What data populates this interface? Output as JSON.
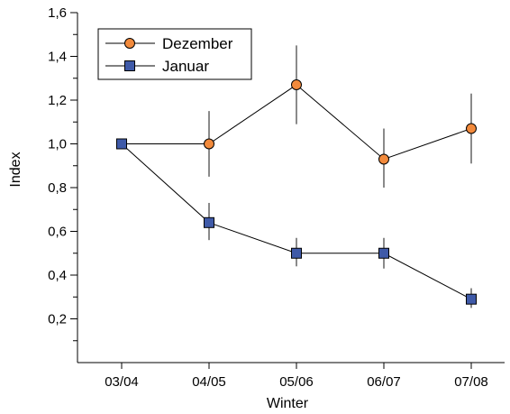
{
  "chart_data": {
    "type": "line",
    "xlabel": "Winter",
    "ylabel": "Index",
    "categories": [
      "03/04",
      "04/05",
      "05/06",
      "06/07",
      "07/08"
    ],
    "ylim": [
      0,
      1.6
    ],
    "yticks": [
      0.2,
      0.4,
      0.6,
      0.8,
      1.0,
      1.2,
      1.4,
      1.6
    ],
    "ytick_labels": [
      "0,2",
      "0,4",
      "0,6",
      "0,8",
      "1,0",
      "1,2",
      "1,4",
      "1,6"
    ],
    "grid": false,
    "legend_position": "top-left",
    "series": [
      {
        "name": "Dezember",
        "marker": "circle",
        "color": "#F28A3C",
        "values": [
          1.0,
          1.0,
          1.27,
          0.93,
          1.07
        ],
        "error_low": [
          1.0,
          0.85,
          1.09,
          0.8,
          0.91
        ],
        "error_high": [
          1.0,
          1.15,
          1.45,
          1.07,
          1.23
        ]
      },
      {
        "name": "Januar",
        "marker": "square",
        "color": "#3F5AA8",
        "values": [
          1.0,
          0.64,
          0.5,
          0.5,
          0.29
        ],
        "error_low": [
          1.0,
          0.56,
          0.44,
          0.43,
          0.25
        ],
        "error_high": [
          1.0,
          0.73,
          0.57,
          0.57,
          0.34
        ]
      }
    ]
  }
}
